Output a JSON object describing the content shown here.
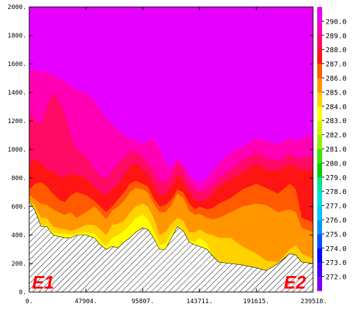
{
  "chart_data": {
    "type": "area",
    "title": "",
    "xlabel": "",
    "ylabel": "",
    "xlim": [
      0,
      239518
    ],
    "ylim": [
      0,
      2000
    ],
    "x_tick_labels": [
      "0.",
      "47904.",
      "95807.",
      "143711.",
      "191615.",
      "239518."
    ],
    "y_tick_labels": [
      "0.",
      "200.",
      "400.",
      "600.",
      "800.",
      "1000.",
      "1200.",
      "1400.",
      "1600.",
      "1800.",
      "2000."
    ],
    "x_ticks": [
      0,
      47904,
      95807,
      143711,
      191615,
      239518
    ],
    "y_ticks": [
      0,
      200,
      400,
      600,
      800,
      1000,
      1200,
      1400,
      1600,
      1800,
      2000
    ],
    "colorbar_labels": [
      "272.0",
      "273.0",
      "274.0",
      "275.0",
      "276.0",
      "277.0",
      "278.0",
      "279.0",
      "280.0",
      "281.0",
      "282.0",
      "283.0",
      "284.0",
      "285.0",
      "286.0",
      "287.0",
      "288.0",
      "289.0",
      "290.0"
    ],
    "colorbar_colors": [
      "#7a00f0",
      "#3c00ff",
      "#0000ff",
      "#0050ff",
      "#0096ff",
      "#00c8ff",
      "#00e0e0",
      "#00e696",
      "#00d200",
      "#39e600",
      "#96ee00",
      "#d2f000",
      "#ffff00",
      "#ffd200",
      "#ff9600",
      "#ff5a00",
      "#ff1414",
      "#ff0a64",
      "#ff00b4",
      "#e600ff"
    ],
    "x": [
      0,
      5000,
      10000,
      15000,
      20000,
      25000,
      30000,
      35000,
      40000,
      47904,
      55000,
      60000,
      65000,
      70000,
      75000,
      80000,
      85000,
      90000,
      95807,
      100000,
      105000,
      110000,
      115000,
      120000,
      125000,
      130000,
      135000,
      140000,
      143711,
      150000,
      155000,
      160000,
      170000,
      180000,
      191615,
      200000,
      210000,
      220000,
      225000,
      230000,
      239518
    ],
    "terrain": [
      640,
      570,
      460,
      460,
      400,
      390,
      380,
      380,
      400,
      400,
      380,
      330,
      300,
      320,
      310,
      350,
      380,
      420,
      450,
      440,
      380,
      300,
      300,
      380,
      460,
      430,
      350,
      330,
      320,
      300,
      250,
      210,
      200,
      190,
      170,
      150,
      200,
      270,
      260,
      210,
      200
    ],
    "bands": [
      {
        "name": "283.0",
        "top": [
          640,
          570,
          470,
          470,
          420,
          410,
          410,
          400,
          410,
          420,
          410,
          360,
          320,
          380,
          400,
          430,
          470,
          520,
          540,
          510,
          430,
          330,
          340,
          420,
          470,
          440,
          360,
          350,
          380,
          340,
          250,
          210,
          200,
          190,
          170,
          150,
          200,
          270,
          260,
          210,
          200
        ]
      },
      {
        "name": "284.0",
        "top": [
          650,
          600,
          520,
          520,
          460,
          450,
          440,
          430,
          440,
          470,
          470,
          440,
          400,
          470,
          480,
          500,
          560,
          600,
          620,
          600,
          520,
          400,
          420,
          480,
          520,
          500,
          420,
          420,
          440,
          410,
          400,
          380,
          380,
          320,
          270,
          220,
          210,
          300,
          330,
          270,
          230
        ]
      },
      {
        "name": "285.0",
        "top": [
          680,
          650,
          620,
          610,
          580,
          560,
          540,
          560,
          520,
          560,
          600,
          560,
          510,
          570,
          600,
          640,
          700,
          730,
          720,
          700,
          620,
          560,
          560,
          610,
          690,
          660,
          570,
          540,
          550,
          520,
          510,
          520,
          560,
          600,
          620,
          610,
          560,
          580,
          560,
          450,
          420
        ]
      },
      {
        "name": "286.0",
        "top": [
          720,
          760,
          770,
          740,
          690,
          650,
          630,
          680,
          700,
          680,
          640,
          600,
          560,
          600,
          650,
          700,
          760,
          780,
          760,
          740,
          660,
          600,
          610,
          650,
          720,
          700,
          620,
          580,
          600,
          580,
          590,
          620,
          660,
          720,
          760,
          730,
          690,
          760,
          720,
          520,
          490
        ]
      },
      {
        "name": "287.0",
        "top": [
          900,
          930,
          900,
          860,
          840,
          820,
          800,
          830,
          820,
          800,
          740,
          700,
          680,
          720,
          760,
          820,
          880,
          900,
          860,
          820,
          760,
          680,
          690,
          740,
          820,
          780,
          700,
          650,
          640,
          650,
          690,
          740,
          790,
          840,
          900,
          860,
          850,
          900,
          870,
          860,
          860
        ]
      },
      {
        "name": "288.0",
        "top": [
          1240,
          1200,
          1180,
          1300,
          1400,
          1350,
          1250,
          1100,
          1000,
          950,
          860,
          820,
          800,
          850,
          900,
          950,
          980,
          990,
          940,
          900,
          860,
          780,
          770,
          820,
          900,
          860,
          760,
          720,
          700,
          720,
          760,
          800,
          860,
          920,
          980,
          940,
          920,
          970,
          940,
          940,
          960
        ]
      },
      {
        "name": "289.0",
        "top": [
          1560,
          1560,
          1540,
          1550,
          1520,
          1500,
          1480,
          1450,
          1420,
          1400,
          1340,
          1280,
          1220,
          1180,
          1140,
          1100,
          1080,
          1060,
          1040,
          1060,
          1080,
          1010,
          900,
          880,
          940,
          900,
          820,
          780,
          760,
          800,
          860,
          900,
          980,
          1020,
          1080,
          1060,
          1040,
          1080,
          1060,
          1080,
          1100
        ]
      },
      {
        "name": "290.0",
        "top": [
          1680,
          1680,
          1690,
          1700,
          1690,
          1660,
          1640,
          1600,
          1560,
          1520,
          1440,
          1380,
          1320,
          1300,
          1260,
          1220,
          1170,
          1130,
          1100,
          1160,
          1240,
          1180,
          1020,
          960,
          1000,
          960,
          900,
          860,
          840,
          880,
          940,
          980,
          1060,
          1100,
          1160,
          1140,
          1100,
          1140,
          1120,
          1160,
          1210
        ]
      }
    ],
    "top_fill": "#e600ff",
    "band_colors": [
      "#ffff00",
      "#ffd200",
      "#ff9600",
      "#ff5a00",
      "#ff1414",
      "#ff0a64",
      "#ff00b4",
      "#e600ff"
    ],
    "terrain_color": "#ffffff",
    "end_labels": {
      "left": "E1",
      "right": "E2"
    }
  }
}
